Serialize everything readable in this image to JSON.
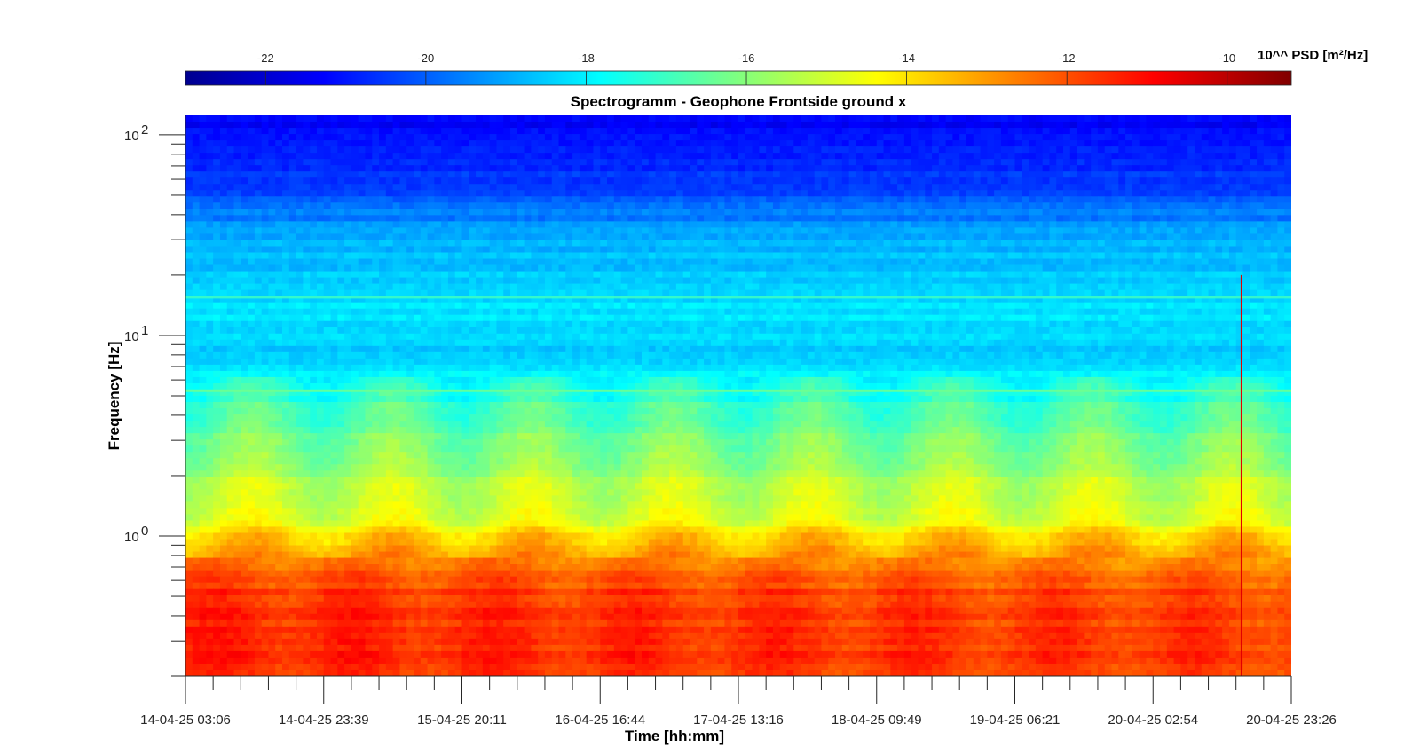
{
  "chart_data": {
    "type": "heatmap",
    "title": "Spectrogramm - Geophone Frontside ground x",
    "xlabel": "Time [hh:mm]",
    "ylabel": "Frequency [Hz]",
    "y_scale": "log",
    "ylim": [
      0.2,
      125
    ],
    "y_ticks": [
      {
        "value": 1,
        "label": "10",
        "exp": "0"
      },
      {
        "value": 10,
        "label": "10",
        "exp": "1"
      },
      {
        "value": 100,
        "label": "10",
        "exp": "2"
      }
    ],
    "x_tick_labels": [
      "14-04-25 03:06",
      "14-04-25 23:39",
      "15-04-25 20:11",
      "16-04-25 16:44",
      "17-04-25 13:16",
      "18-04-25 09:49",
      "19-04-25 06:21",
      "20-04-25 02:54",
      "20-04-25 23:26"
    ],
    "colorbar": {
      "label": "10^^ PSD [m²/Hz]",
      "range": [
        -23,
        -9.2
      ],
      "ticks": [
        -22,
        -20,
        -18,
        -16,
        -14,
        -12,
        -10
      ],
      "colormap": "jet"
    },
    "psd_profile": [
      {
        "freq": 120,
        "log10_psd": -21.3
      },
      {
        "freq": 80,
        "log10_psd": -21.0
      },
      {
        "freq": 50,
        "log10_psd": -20.2
      },
      {
        "freq": 30,
        "log10_psd": -18.9
      },
      {
        "freq": 15,
        "log10_psd": -18.2
      },
      {
        "freq": 8,
        "log10_psd": -18.4
      },
      {
        "freq": 5,
        "log10_psd": -17.2
      },
      {
        "freq": 3,
        "log10_psd": -16.2
      },
      {
        "freq": 2,
        "log10_psd": -15.5
      },
      {
        "freq": 1.2,
        "log10_psd": -14.6
      },
      {
        "freq": 0.8,
        "log10_psd": -12.8
      },
      {
        "freq": 0.5,
        "log10_psd": -11.5
      },
      {
        "freq": 0.25,
        "log10_psd": -11.3
      }
    ],
    "notable_features": [
      {
        "type": "line",
        "freq": 15.5,
        "log10_psd": -17.0
      },
      {
        "type": "line",
        "freq": 5.3,
        "log10_psd": -16.3
      },
      {
        "type": "transient",
        "time": "20-04-25 ~19:00",
        "log10_psd": -10.5
      }
    ]
  }
}
